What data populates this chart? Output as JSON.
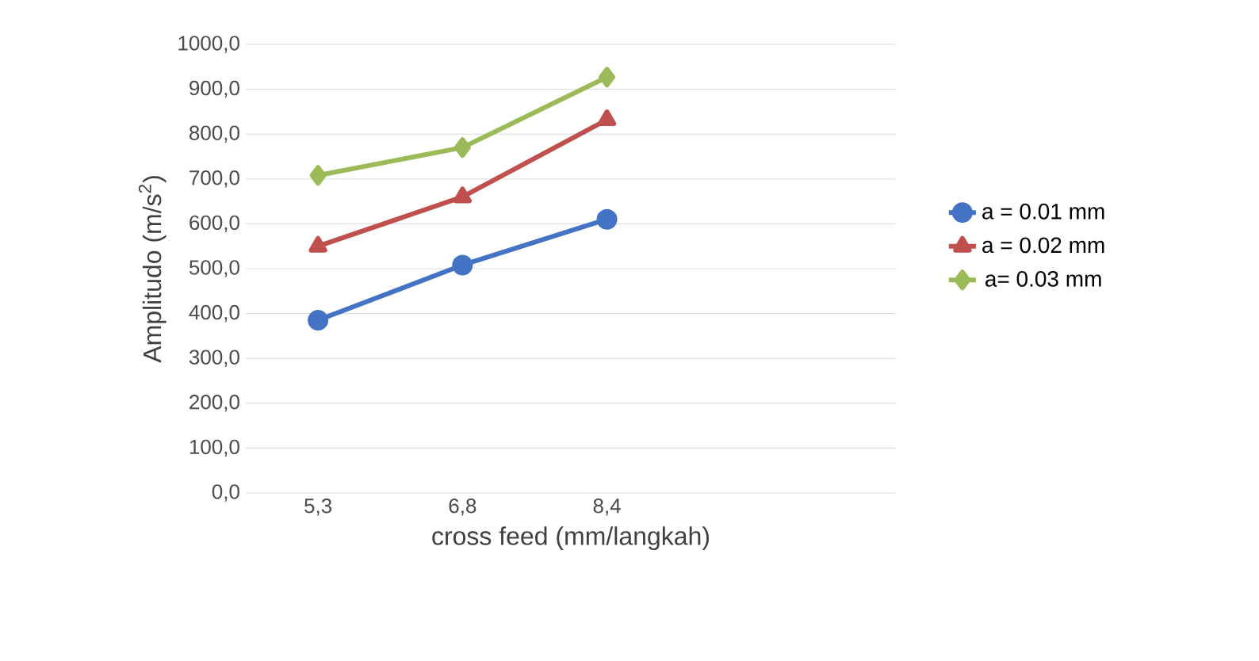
{
  "chart_data": {
    "type": "line",
    "xlabel": "cross feed (mm/langkah)",
    "ylabel": "Amplitudo (m/s$^{2}$)",
    "categories": [
      "5,3",
      "6,8",
      "8,4"
    ],
    "series": [
      {
        "name": "a = 0.01 mm",
        "color": "#4472c4",
        "marker": "circle",
        "values": [
          385,
          508,
          610
        ]
      },
      {
        "name": "a = 0.02 mm",
        "color": "#c0504d",
        "marker": "triangle",
        "values": [
          550,
          660,
          832
        ]
      },
      {
        "name": "a= 0.03 mm",
        "color": "#9bbb59",
        "marker": "diamond",
        "values": [
          708,
          770,
          927
        ]
      }
    ],
    "ylim": [
      0,
      1000
    ],
    "yticks": [
      {
        "value": 0,
        "label": "0,0"
      },
      {
        "value": 100,
        "label": "100,0"
      },
      {
        "value": 200,
        "label": "200,0"
      },
      {
        "value": 300,
        "label": "300,0"
      },
      {
        "value": 400,
        "label": "400,0"
      },
      {
        "value": 500,
        "label": "500,0"
      },
      {
        "value": 600,
        "label": "600,0"
      },
      {
        "value": 700,
        "label": "700,0"
      },
      {
        "value": 800,
        "label": "800,0"
      },
      {
        "value": 900,
        "label": "900,0"
      },
      {
        "value": 1000,
        "label": "1000,0"
      }
    ],
    "grid": "y",
    "legend": "right",
    "line_style": "solid"
  }
}
